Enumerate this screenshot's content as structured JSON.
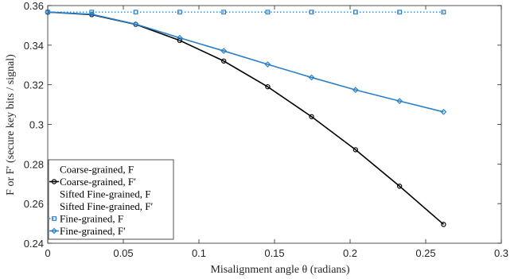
{
  "chart_data": {
    "type": "line",
    "xlabel": "Misalignment angle θ (radians)",
    "ylabel": "F or F′ (secure key bits / signal)",
    "xlim": [
      0,
      0.3
    ],
    "ylim": [
      0.24,
      0.36
    ],
    "xticks": [
      "0",
      "0.05",
      "0.1",
      "0.15",
      "0.2",
      "0.25",
      "0.3"
    ],
    "yticks": [
      "0.24",
      "0.26",
      "0.28",
      "0.3",
      "0.32",
      "0.34",
      "0.36"
    ],
    "grid": false,
    "legend_position": "bottom-left",
    "series": [
      {
        "name": "Coarse-grained, F",
        "color": "#000000",
        "style": "none",
        "marker": "none",
        "x": [
          0,
          0.0291,
          0.0582,
          0.0873,
          0.1164,
          0.1455,
          0.1745,
          0.2036,
          0.2327,
          0.2618
        ],
        "y": [
          0.3567,
          0.3554,
          0.3505,
          0.3424,
          0.332,
          0.319,
          0.3039,
          0.2872,
          0.2688,
          0.2495
        ]
      },
      {
        "name": "Coarse-grained, F′",
        "color": "#000000",
        "style": "solid",
        "marker": "circle",
        "x": [
          0,
          0.0291,
          0.0582,
          0.0873,
          0.1164,
          0.1455,
          0.1745,
          0.2036,
          0.2327,
          0.2618
        ],
        "y": [
          0.3567,
          0.3554,
          0.3505,
          0.3424,
          0.332,
          0.319,
          0.3039,
          0.2872,
          0.2688,
          0.2495
        ]
      },
      {
        "name": "Sifted Fine-grained, F",
        "color": "#000000",
        "style": "none",
        "marker": "none",
        "x": [
          0,
          0.0291,
          0.0582,
          0.0873,
          0.1164,
          0.1455,
          0.1745,
          0.2036,
          0.2327,
          0.2618
        ],
        "y": [
          0.3567,
          0.3554,
          0.3505,
          0.3424,
          0.332,
          0.319,
          0.3039,
          0.2872,
          0.2688,
          0.2495
        ]
      },
      {
        "name": "Sifted Fine-grained, F′",
        "color": "#000000",
        "style": "none",
        "marker": "none",
        "x": [
          0,
          0.0291,
          0.0582,
          0.0873,
          0.1164,
          0.1455,
          0.1745,
          0.2036,
          0.2327,
          0.2618
        ],
        "y": [
          0.3567,
          0.3554,
          0.3505,
          0.3424,
          0.332,
          0.319,
          0.3039,
          0.2872,
          0.2688,
          0.2495
        ]
      },
      {
        "name": "Fine-grained, F",
        "color": "#2a7fc9",
        "style": "dotted",
        "marker": "square",
        "x": [
          0,
          0.0291,
          0.0582,
          0.0873,
          0.1164,
          0.1455,
          0.1745,
          0.2036,
          0.2327,
          0.2618
        ],
        "y": [
          0.3567,
          0.3567,
          0.3567,
          0.3567,
          0.3567,
          0.3567,
          0.3567,
          0.3567,
          0.3567,
          0.3567
        ]
      },
      {
        "name": "Fine-grained, F′",
        "color": "#2a7fc9",
        "style": "solid",
        "marker": "diamond",
        "x": [
          0,
          0.0291,
          0.0582,
          0.0873,
          0.1164,
          0.1455,
          0.1745,
          0.2036,
          0.2327,
          0.2618
        ],
        "y": [
          0.3567,
          0.3556,
          0.3506,
          0.3437,
          0.3371,
          0.3303,
          0.3237,
          0.3174,
          0.3118,
          0.3063
        ]
      }
    ]
  }
}
